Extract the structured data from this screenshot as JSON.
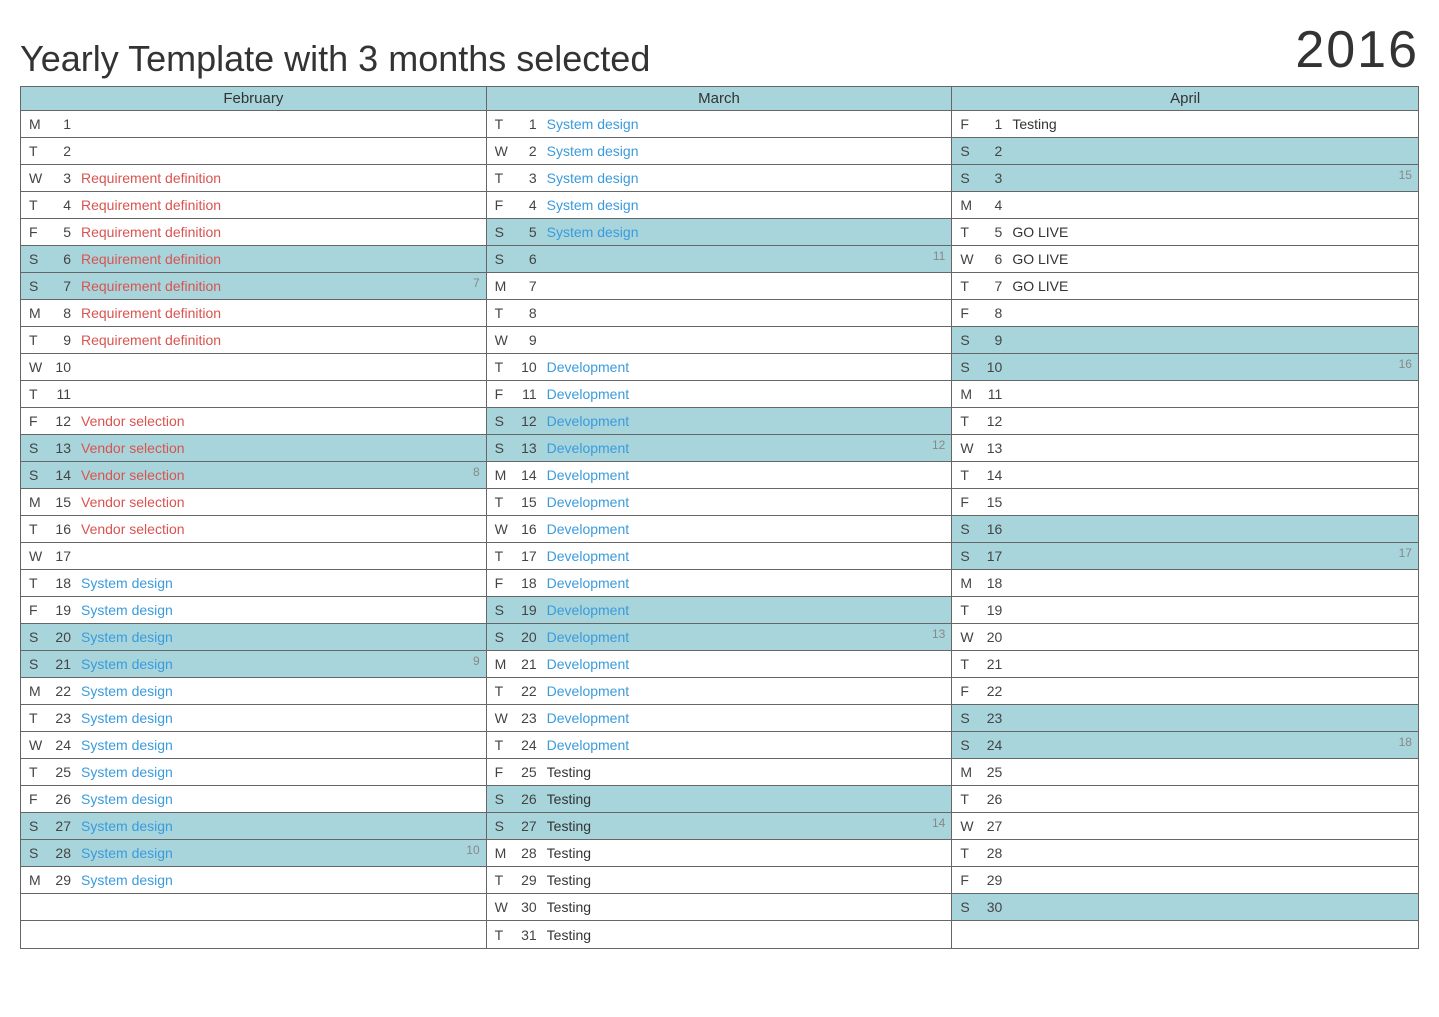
{
  "title": "Yearly Template with 3 months selected",
  "year": "2016",
  "task_colors": {
    "red": "#d9534f",
    "blue": "#3a9bdc",
    "black": "#333333"
  },
  "weekend_color": "#a8d5dc",
  "border_color": "#666666",
  "max_rows": 31,
  "months": [
    {
      "name": "February",
      "days": [
        {
          "dow": "M",
          "num": 1,
          "task": "",
          "color": "",
          "weekend": false,
          "week": ""
        },
        {
          "dow": "T",
          "num": 2,
          "task": "",
          "color": "",
          "weekend": false,
          "week": ""
        },
        {
          "dow": "W",
          "num": 3,
          "task": "Requirement definition",
          "color": "red",
          "weekend": false,
          "week": ""
        },
        {
          "dow": "T",
          "num": 4,
          "task": "Requirement definition",
          "color": "red",
          "weekend": false,
          "week": ""
        },
        {
          "dow": "F",
          "num": 5,
          "task": "Requirement definition",
          "color": "red",
          "weekend": false,
          "week": ""
        },
        {
          "dow": "S",
          "num": 6,
          "task": "Requirement definition",
          "color": "red",
          "weekend": true,
          "week": ""
        },
        {
          "dow": "S",
          "num": 7,
          "task": "Requirement definition",
          "color": "red",
          "weekend": true,
          "week": "7"
        },
        {
          "dow": "M",
          "num": 8,
          "task": "Requirement definition",
          "color": "red",
          "weekend": false,
          "week": ""
        },
        {
          "dow": "T",
          "num": 9,
          "task": "Requirement definition",
          "color": "red",
          "weekend": false,
          "week": ""
        },
        {
          "dow": "W",
          "num": 10,
          "task": "",
          "color": "",
          "weekend": false,
          "week": ""
        },
        {
          "dow": "T",
          "num": 11,
          "task": "",
          "color": "",
          "weekend": false,
          "week": ""
        },
        {
          "dow": "F",
          "num": 12,
          "task": "Vendor selection",
          "color": "red",
          "weekend": false,
          "week": ""
        },
        {
          "dow": "S",
          "num": 13,
          "task": "Vendor selection",
          "color": "red",
          "weekend": true,
          "week": ""
        },
        {
          "dow": "S",
          "num": 14,
          "task": "Vendor selection",
          "color": "red",
          "weekend": true,
          "week": "8"
        },
        {
          "dow": "M",
          "num": 15,
          "task": "Vendor selection",
          "color": "red",
          "weekend": false,
          "week": ""
        },
        {
          "dow": "T",
          "num": 16,
          "task": "Vendor selection",
          "color": "red",
          "weekend": false,
          "week": ""
        },
        {
          "dow": "W",
          "num": 17,
          "task": "",
          "color": "",
          "weekend": false,
          "week": ""
        },
        {
          "dow": "T",
          "num": 18,
          "task": "System design",
          "color": "blue",
          "weekend": false,
          "week": ""
        },
        {
          "dow": "F",
          "num": 19,
          "task": "System design",
          "color": "blue",
          "weekend": false,
          "week": ""
        },
        {
          "dow": "S",
          "num": 20,
          "task": "System design",
          "color": "blue",
          "weekend": true,
          "week": ""
        },
        {
          "dow": "S",
          "num": 21,
          "task": "System design",
          "color": "blue",
          "weekend": true,
          "week": "9"
        },
        {
          "dow": "M",
          "num": 22,
          "task": "System design",
          "color": "blue",
          "weekend": false,
          "week": ""
        },
        {
          "dow": "T",
          "num": 23,
          "task": "System design",
          "color": "blue",
          "weekend": false,
          "week": ""
        },
        {
          "dow": "W",
          "num": 24,
          "task": "System design",
          "color": "blue",
          "weekend": false,
          "week": ""
        },
        {
          "dow": "T",
          "num": 25,
          "task": "System design",
          "color": "blue",
          "weekend": false,
          "week": ""
        },
        {
          "dow": "F",
          "num": 26,
          "task": "System design",
          "color": "blue",
          "weekend": false,
          "week": ""
        },
        {
          "dow": "S",
          "num": 27,
          "task": "System design",
          "color": "blue",
          "weekend": true,
          "week": ""
        },
        {
          "dow": "S",
          "num": 28,
          "task": "System design",
          "color": "blue",
          "weekend": true,
          "week": "10"
        },
        {
          "dow": "M",
          "num": 29,
          "task": "System design",
          "color": "blue",
          "weekend": false,
          "week": ""
        }
      ]
    },
    {
      "name": "March",
      "days": [
        {
          "dow": "T",
          "num": 1,
          "task": "System design",
          "color": "blue",
          "weekend": false,
          "week": ""
        },
        {
          "dow": "W",
          "num": 2,
          "task": "System design",
          "color": "blue",
          "weekend": false,
          "week": ""
        },
        {
          "dow": "T",
          "num": 3,
          "task": "System design",
          "color": "blue",
          "weekend": false,
          "week": ""
        },
        {
          "dow": "F",
          "num": 4,
          "task": "System design",
          "color": "blue",
          "weekend": false,
          "week": ""
        },
        {
          "dow": "S",
          "num": 5,
          "task": "System design",
          "color": "blue",
          "weekend": true,
          "week": ""
        },
        {
          "dow": "S",
          "num": 6,
          "task": "",
          "color": "",
          "weekend": true,
          "week": "11"
        },
        {
          "dow": "M",
          "num": 7,
          "task": "",
          "color": "",
          "weekend": false,
          "week": ""
        },
        {
          "dow": "T",
          "num": 8,
          "task": "",
          "color": "",
          "weekend": false,
          "week": ""
        },
        {
          "dow": "W",
          "num": 9,
          "task": "",
          "color": "",
          "weekend": false,
          "week": ""
        },
        {
          "dow": "T",
          "num": 10,
          "task": "Development",
          "color": "blue",
          "weekend": false,
          "week": ""
        },
        {
          "dow": "F",
          "num": 11,
          "task": "Development",
          "color": "blue",
          "weekend": false,
          "week": ""
        },
        {
          "dow": "S",
          "num": 12,
          "task": "Development",
          "color": "blue",
          "weekend": true,
          "week": ""
        },
        {
          "dow": "S",
          "num": 13,
          "task": "Development",
          "color": "blue",
          "weekend": true,
          "week": "12"
        },
        {
          "dow": "M",
          "num": 14,
          "task": "Development",
          "color": "blue",
          "weekend": false,
          "week": ""
        },
        {
          "dow": "T",
          "num": 15,
          "task": "Development",
          "color": "blue",
          "weekend": false,
          "week": ""
        },
        {
          "dow": "W",
          "num": 16,
          "task": "Development",
          "color": "blue",
          "weekend": false,
          "week": ""
        },
        {
          "dow": "T",
          "num": 17,
          "task": "Development",
          "color": "blue",
          "weekend": false,
          "week": ""
        },
        {
          "dow": "F",
          "num": 18,
          "task": "Development",
          "color": "blue",
          "weekend": false,
          "week": ""
        },
        {
          "dow": "S",
          "num": 19,
          "task": "Development",
          "color": "blue",
          "weekend": true,
          "week": ""
        },
        {
          "dow": "S",
          "num": 20,
          "task": "Development",
          "color": "blue",
          "weekend": true,
          "week": "13"
        },
        {
          "dow": "M",
          "num": 21,
          "task": "Development",
          "color": "blue",
          "weekend": false,
          "week": ""
        },
        {
          "dow": "T",
          "num": 22,
          "task": "Development",
          "color": "blue",
          "weekend": false,
          "week": ""
        },
        {
          "dow": "W",
          "num": 23,
          "task": "Development",
          "color": "blue",
          "weekend": false,
          "week": ""
        },
        {
          "dow": "T",
          "num": 24,
          "task": "Development",
          "color": "blue",
          "weekend": false,
          "week": ""
        },
        {
          "dow": "F",
          "num": 25,
          "task": "Testing",
          "color": "black",
          "weekend": false,
          "week": ""
        },
        {
          "dow": "S",
          "num": 26,
          "task": "Testing",
          "color": "black",
          "weekend": true,
          "week": ""
        },
        {
          "dow": "S",
          "num": 27,
          "task": "Testing",
          "color": "black",
          "weekend": true,
          "week": "14"
        },
        {
          "dow": "M",
          "num": 28,
          "task": "Testing",
          "color": "black",
          "weekend": false,
          "week": ""
        },
        {
          "dow": "T",
          "num": 29,
          "task": "Testing",
          "color": "black",
          "weekend": false,
          "week": ""
        },
        {
          "dow": "W",
          "num": 30,
          "task": "Testing",
          "color": "black",
          "weekend": false,
          "week": ""
        },
        {
          "dow": "T",
          "num": 31,
          "task": "Testing",
          "color": "black",
          "weekend": false,
          "week": ""
        }
      ]
    },
    {
      "name": "April",
      "days": [
        {
          "dow": "F",
          "num": 1,
          "task": "Testing",
          "color": "black",
          "weekend": false,
          "week": ""
        },
        {
          "dow": "S",
          "num": 2,
          "task": "",
          "color": "",
          "weekend": true,
          "week": ""
        },
        {
          "dow": "S",
          "num": 3,
          "task": "",
          "color": "",
          "weekend": true,
          "week": "15"
        },
        {
          "dow": "M",
          "num": 4,
          "task": "",
          "color": "",
          "weekend": false,
          "week": ""
        },
        {
          "dow": "T",
          "num": 5,
          "task": "GO LIVE",
          "color": "black",
          "weekend": false,
          "week": ""
        },
        {
          "dow": "W",
          "num": 6,
          "task": "GO LIVE",
          "color": "black",
          "weekend": false,
          "week": ""
        },
        {
          "dow": "T",
          "num": 7,
          "task": "GO LIVE",
          "color": "black",
          "weekend": false,
          "week": ""
        },
        {
          "dow": "F",
          "num": 8,
          "task": "",
          "color": "",
          "weekend": false,
          "week": ""
        },
        {
          "dow": "S",
          "num": 9,
          "task": "",
          "color": "",
          "weekend": true,
          "week": ""
        },
        {
          "dow": "S",
          "num": 10,
          "task": "",
          "color": "",
          "weekend": true,
          "week": "16"
        },
        {
          "dow": "M",
          "num": 11,
          "task": "",
          "color": "",
          "weekend": false,
          "week": ""
        },
        {
          "dow": "T",
          "num": 12,
          "task": "",
          "color": "",
          "weekend": false,
          "week": ""
        },
        {
          "dow": "W",
          "num": 13,
          "task": "",
          "color": "",
          "weekend": false,
          "week": ""
        },
        {
          "dow": "T",
          "num": 14,
          "task": "",
          "color": "",
          "weekend": false,
          "week": ""
        },
        {
          "dow": "F",
          "num": 15,
          "task": "",
          "color": "",
          "weekend": false,
          "week": ""
        },
        {
          "dow": "S",
          "num": 16,
          "task": "",
          "color": "",
          "weekend": true,
          "week": ""
        },
        {
          "dow": "S",
          "num": 17,
          "task": "",
          "color": "",
          "weekend": true,
          "week": "17"
        },
        {
          "dow": "M",
          "num": 18,
          "task": "",
          "color": "",
          "weekend": false,
          "week": ""
        },
        {
          "dow": "T",
          "num": 19,
          "task": "",
          "color": "",
          "weekend": false,
          "week": ""
        },
        {
          "dow": "W",
          "num": 20,
          "task": "",
          "color": "",
          "weekend": false,
          "week": ""
        },
        {
          "dow": "T",
          "num": 21,
          "task": "",
          "color": "",
          "weekend": false,
          "week": ""
        },
        {
          "dow": "F",
          "num": 22,
          "task": "",
          "color": "",
          "weekend": false,
          "week": ""
        },
        {
          "dow": "S",
          "num": 23,
          "task": "",
          "color": "",
          "weekend": true,
          "week": ""
        },
        {
          "dow": "S",
          "num": 24,
          "task": "",
          "color": "",
          "weekend": true,
          "week": "18"
        },
        {
          "dow": "M",
          "num": 25,
          "task": "",
          "color": "",
          "weekend": false,
          "week": ""
        },
        {
          "dow": "T",
          "num": 26,
          "task": "",
          "color": "",
          "weekend": false,
          "week": ""
        },
        {
          "dow": "W",
          "num": 27,
          "task": "",
          "color": "",
          "weekend": false,
          "week": ""
        },
        {
          "dow": "T",
          "num": 28,
          "task": "",
          "color": "",
          "weekend": false,
          "week": ""
        },
        {
          "dow": "F",
          "num": 29,
          "task": "",
          "color": "",
          "weekend": false,
          "week": ""
        },
        {
          "dow": "S",
          "num": 30,
          "task": "",
          "color": "",
          "weekend": true,
          "week": ""
        }
      ]
    }
  ]
}
